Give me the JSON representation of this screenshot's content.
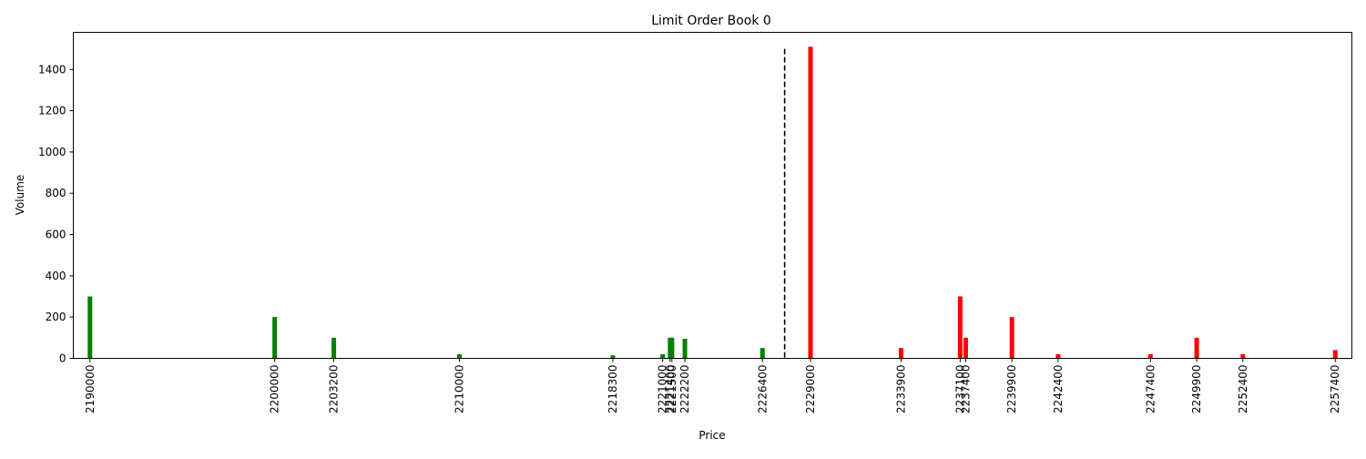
{
  "chart_data": {
    "type": "bar",
    "title": "Limit Order Book 0",
    "xlabel": "Price",
    "ylabel": "Volume",
    "xlim": [
      2189100,
      2258300
    ],
    "ylim": [
      0,
      1580
    ],
    "yticks": [
      0,
      200,
      400,
      600,
      800,
      1000,
      1200,
      1400
    ],
    "xticks": [
      2190000,
      2200000,
      2203200,
      2210000,
      2218300,
      2221000,
      2221400,
      2221500,
      2222200,
      2226400,
      2229000,
      2233900,
      2237100,
      2237400,
      2239900,
      2242400,
      2247400,
      2249900,
      2252400,
      2257400
    ],
    "mid_price": 2227600,
    "mid_line_top": 1500,
    "colors": {
      "bid": "#008000",
      "ask": "#ff0000",
      "mid_line": "#000000"
    },
    "series": [
      {
        "side": "bid",
        "x": [
          2190000,
          2200000,
          2203200,
          2210000,
          2218300,
          2221000,
          2221400,
          2221500,
          2222200,
          2226400
        ],
        "values": [
          300,
          200,
          100,
          20,
          15,
          20,
          100,
          100,
          95,
          50
        ]
      },
      {
        "side": "ask",
        "x": [
          2229000,
          2233900,
          2237100,
          2237400,
          2239900,
          2242400,
          2247400,
          2249900,
          2252400,
          2257400
        ],
        "values": [
          1510,
          50,
          300,
          100,
          200,
          20,
          20,
          100,
          20,
          40
        ]
      }
    ],
    "grid": false,
    "legend": "none"
  }
}
